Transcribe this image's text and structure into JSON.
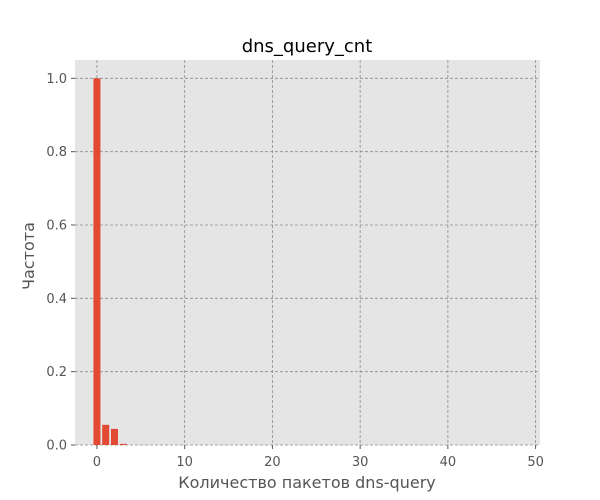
{
  "chart_data": {
    "type": "bar",
    "title": "dns_query_cnt",
    "xlabel": "Количество пакетов dns-query",
    "ylabel": "Частота",
    "x": [
      0,
      1,
      2,
      3
    ],
    "values": [
      1.0,
      0.055,
      0.044,
      0.003
    ],
    "xlim": [
      -2.5,
      50.5
    ],
    "ylim": [
      0.0,
      1.05
    ],
    "xticks": [
      0,
      10,
      20,
      30,
      40,
      50
    ],
    "yticks": [
      0.0,
      0.2,
      0.4,
      0.6,
      0.8,
      1.0
    ],
    "xtick_labels": [
      "0",
      "10",
      "20",
      "30",
      "40",
      "50"
    ],
    "ytick_labels": [
      "0.0",
      "0.2",
      "0.4",
      "0.6",
      "0.8",
      "1.0"
    ],
    "grid": true,
    "colors": {
      "bar": "#E24A33",
      "background": "#E5E5E5",
      "grid": "#8C8C8C"
    }
  }
}
